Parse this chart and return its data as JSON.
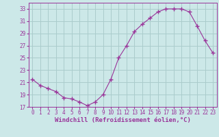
{
  "x": [
    0,
    1,
    2,
    3,
    4,
    5,
    6,
    7,
    8,
    9,
    10,
    11,
    12,
    13,
    14,
    15,
    16,
    17,
    18,
    19,
    20,
    21,
    22,
    23
  ],
  "y": [
    21.5,
    20.5,
    20.0,
    19.5,
    18.5,
    18.3,
    17.8,
    17.2,
    17.8,
    19.0,
    21.5,
    25.0,
    27.0,
    29.3,
    30.5,
    31.5,
    32.5,
    33.0,
    33.0,
    33.0,
    32.5,
    30.2,
    27.8,
    25.8
  ],
  "line_color": "#993399",
  "marker_color": "#993399",
  "bg_color": "#cce8e8",
  "grid_color": "#aacccc",
  "xlabel": "Windchill (Refroidissement éolien,°C)",
  "ylim": [
    17,
    34
  ],
  "xlim": [
    -0.5,
    23.5
  ],
  "yticks": [
    17,
    19,
    21,
    23,
    25,
    27,
    29,
    31,
    33
  ],
  "xticks": [
    0,
    1,
    2,
    3,
    4,
    5,
    6,
    7,
    8,
    9,
    10,
    11,
    12,
    13,
    14,
    15,
    16,
    17,
    18,
    19,
    20,
    21,
    22,
    23
  ],
  "font_family": "monospace",
  "tick_fontsize": 5.5,
  "xlabel_fontsize": 6.5
}
